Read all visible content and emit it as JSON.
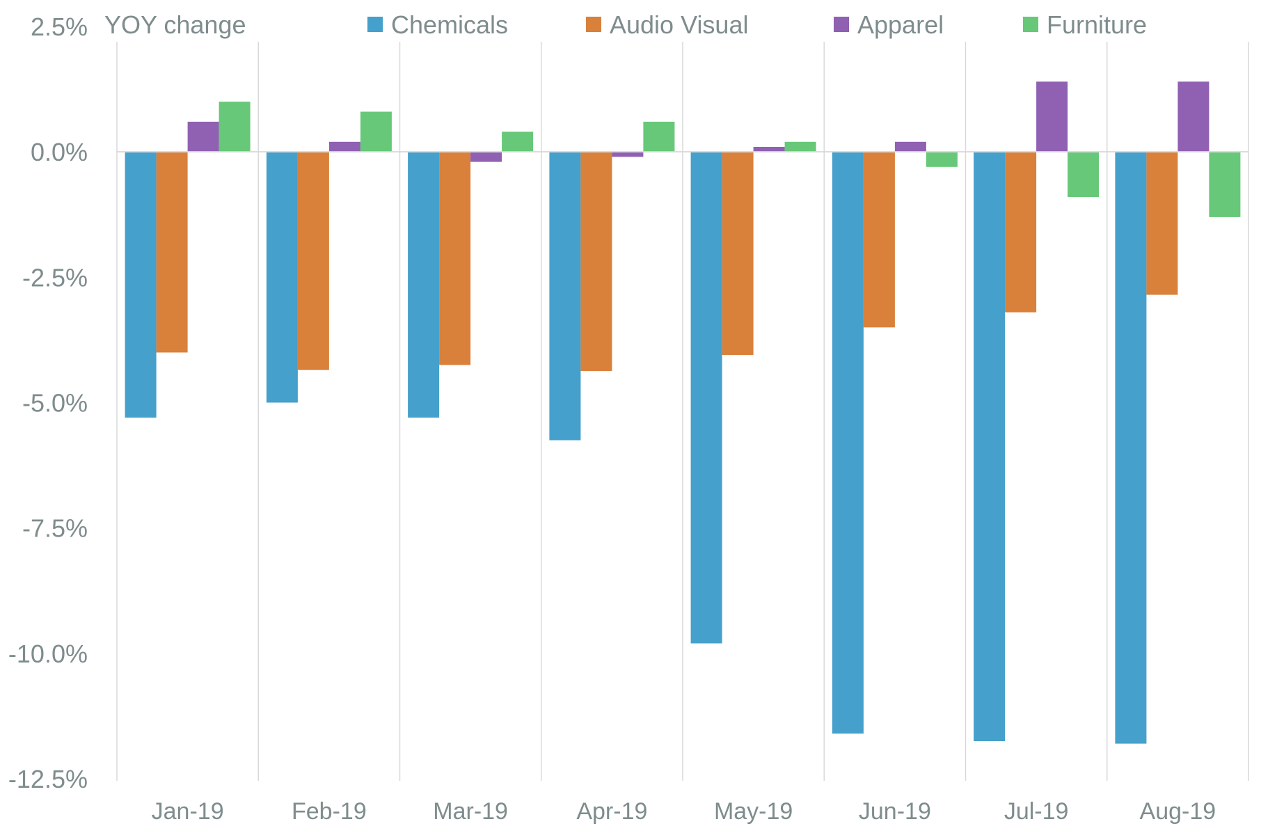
{
  "chart_data": {
    "type": "bar",
    "unit_label": "YOY change",
    "categories": [
      "Jan-19",
      "Feb-19",
      "Mar-19",
      "Apr-19",
      "May-19",
      "Jun-19",
      "Jul-19",
      "Aug-19"
    ],
    "series": [
      {
        "name": "Chemicals",
        "color": "#45a0cb",
        "values": [
          -5.3,
          -5.0,
          -5.3,
          -5.75,
          -9.8,
          -11.6,
          -11.75,
          -11.8
        ]
      },
      {
        "name": "Audio Visual",
        "color": "#d9803b",
        "values": [
          -4.0,
          -4.35,
          -4.25,
          -4.37,
          -4.05,
          -3.5,
          -3.2,
          -2.85
        ]
      },
      {
        "name": "Apparel",
        "color": "#9060b2",
        "values": [
          0.6,
          0.2,
          -0.2,
          -0.1,
          0.1,
          0.2,
          1.4,
          1.4
        ]
      },
      {
        "name": "Furniture",
        "color": "#66c878",
        "values": [
          1.0,
          0.8,
          0.4,
          0.6,
          0.2,
          -0.3,
          -0.9,
          -1.3
        ]
      }
    ],
    "y_ticks": [
      "2.5%",
      "0.0%",
      "-2.5%",
      "-5.0%",
      "-7.5%",
      "-10.0%",
      "-12.5%"
    ],
    "y_tick_values": [
      2.5,
      0.0,
      -2.5,
      -5.0,
      -7.5,
      -10.0,
      -12.5
    ],
    "ylim": [
      -12.5,
      2.5
    ],
    "grid": "vertical category separators",
    "legend_position": "top",
    "colors": {
      "gridline": "#d9d9d9",
      "text": "#7f8c8d"
    }
  }
}
